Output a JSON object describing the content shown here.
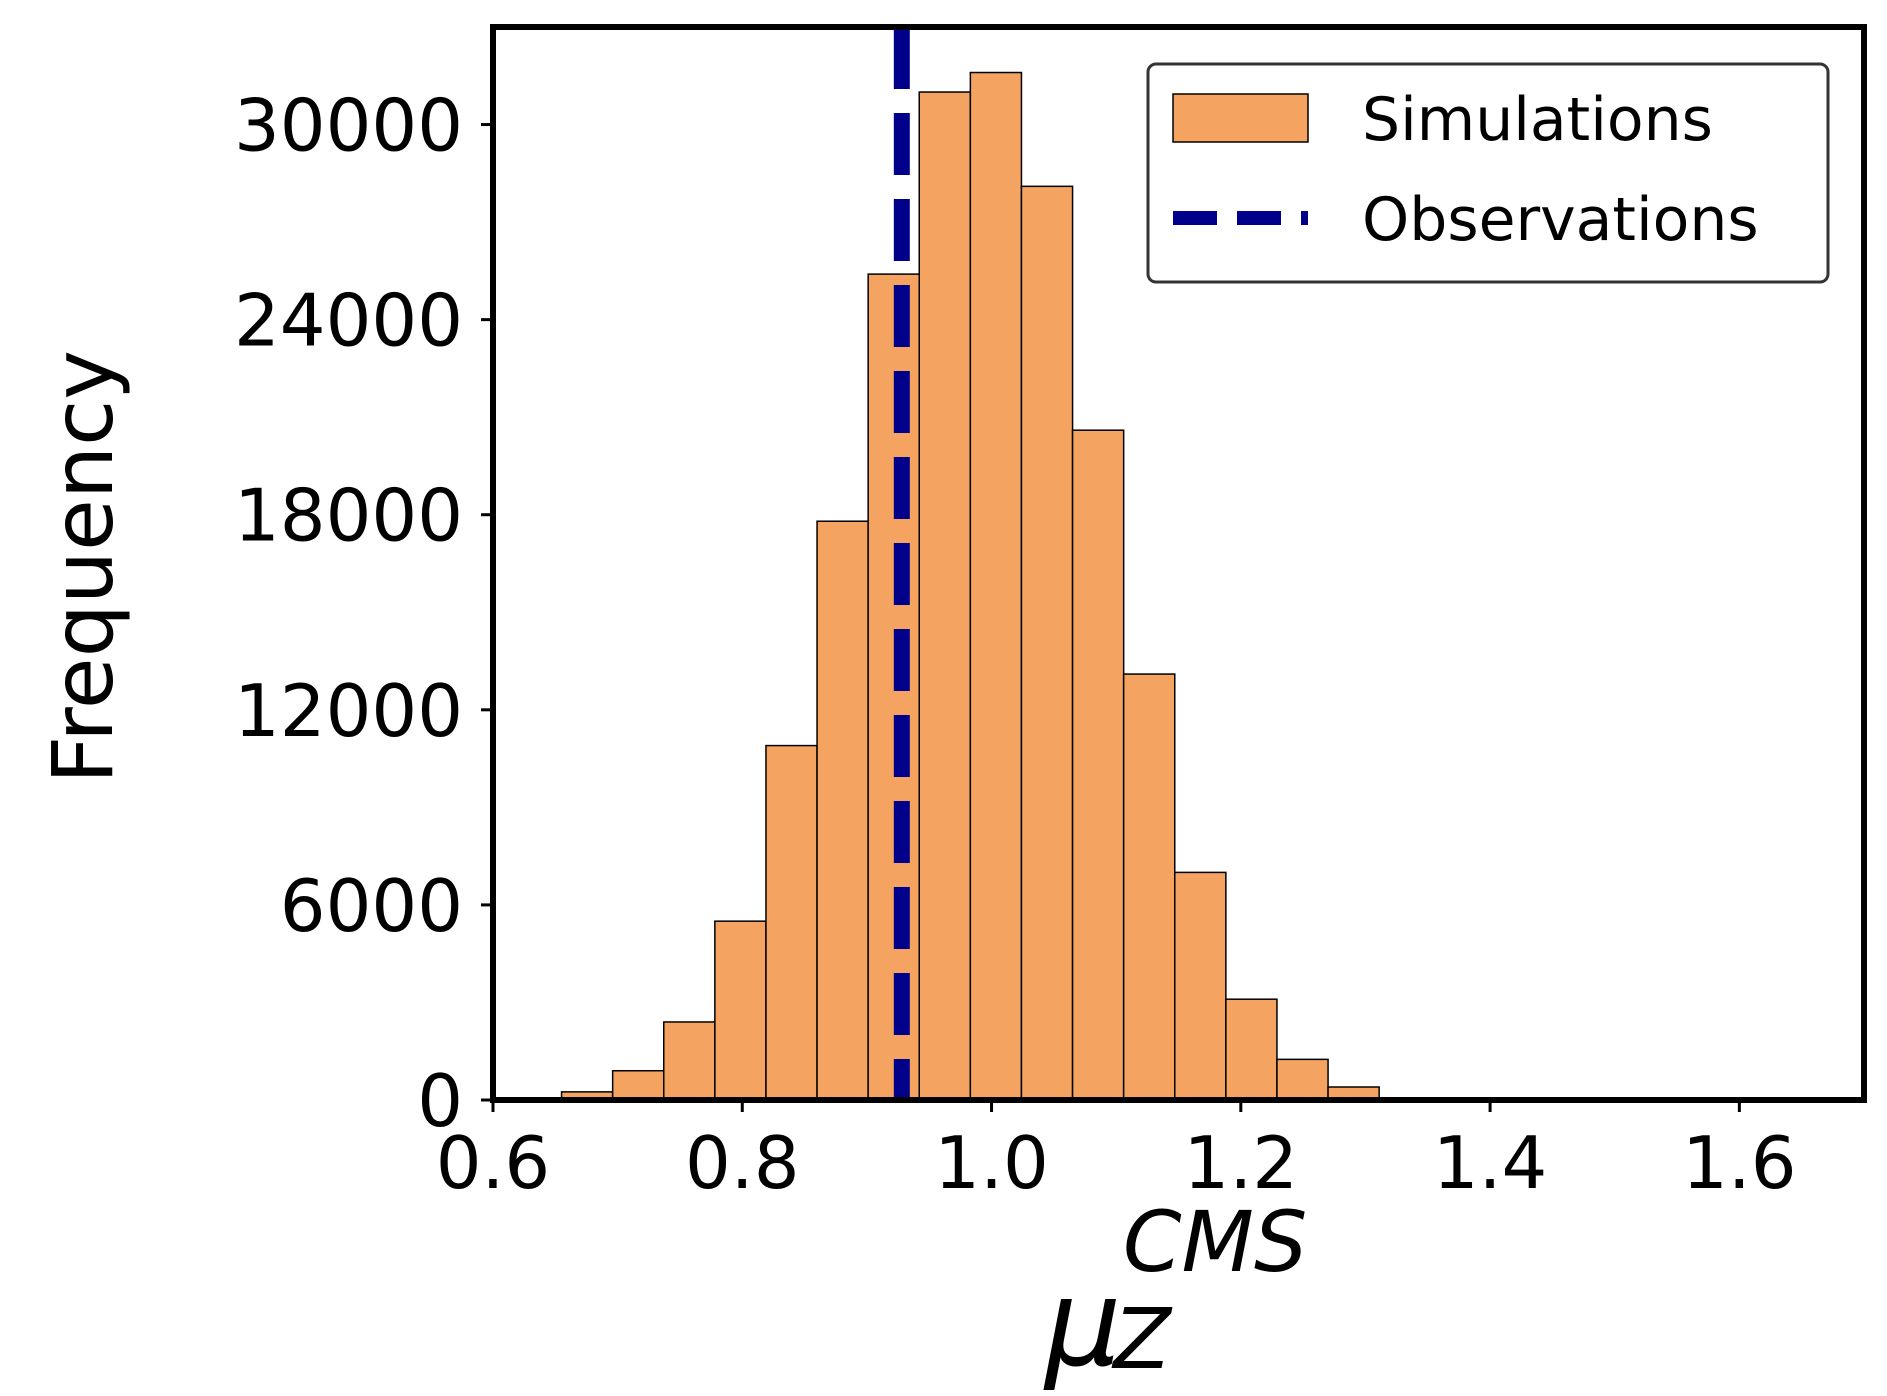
{
  "chart_data": {
    "type": "histogram",
    "xlabel": {
      "base": "μ",
      "sub": "Z",
      "sup": "CMS"
    },
    "ylabel": "Frequency",
    "xlim": [
      0.6,
      1.7
    ],
    "ylim": [
      0,
      33000
    ],
    "xticks": [
      0.6,
      0.8,
      1.0,
      1.2,
      1.4,
      1.6
    ],
    "xtick_labels": [
      "0.6",
      "0.8",
      "1.0",
      "1.2",
      "1.4",
      "1.6"
    ],
    "yticks": [
      0,
      6000,
      12000,
      18000,
      24000,
      30000
    ],
    "ytick_labels": [
      "0",
      "6000",
      "12000",
      "18000",
      "24000",
      "30000"
    ],
    "bin_start": 0.655,
    "bin_width": 0.041,
    "counts": [
      250,
      900,
      2400,
      5500,
      10900,
      17800,
      25400,
      31000,
      31600,
      28100,
      20600,
      13100,
      7000,
      3100,
      1250,
      400
    ],
    "bar_color": "#f4a460",
    "bar_edge_color": "#000000",
    "observation": 0.928,
    "observation_color": "#00008b",
    "legend": {
      "position": "top-right",
      "entries": [
        {
          "label": "Simulations",
          "kind": "patch"
        },
        {
          "label": "Observations",
          "kind": "dashed-line"
        }
      ]
    }
  }
}
